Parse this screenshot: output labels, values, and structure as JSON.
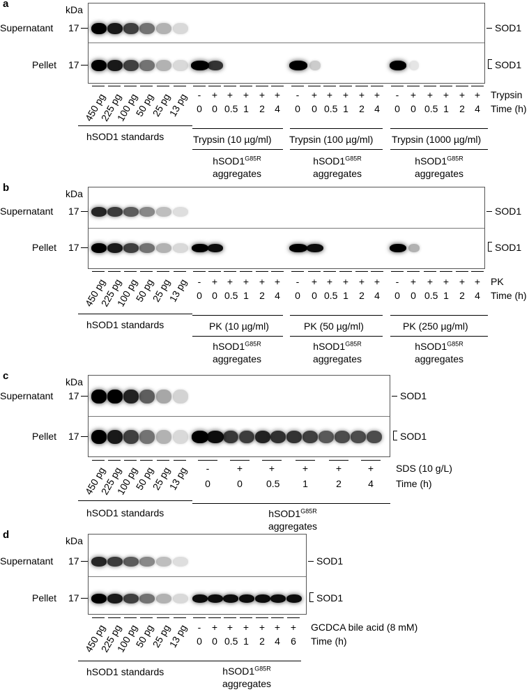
{
  "labels": {
    "kda": "kDa",
    "supernatant": "Supernatant",
    "pellet": "Pellet",
    "mw17": "17",
    "sod1": "SOD1",
    "std_group": "hSOD1 standards",
    "agg_prefix": "hSOD1",
    "agg_sup": "G85R",
    "agg_suffix": "aggregates",
    "time_h": "Time (h)"
  },
  "standards": [
    "450 pg",
    "225 pg",
    "100 pg",
    "50 pg",
    "25 pg",
    "13 pg"
  ],
  "panel_a": {
    "letter": "a",
    "treatment": "Trypsin",
    "signs": [
      "-",
      "+",
      "+",
      "+",
      "+",
      "+"
    ],
    "times": [
      "0",
      "0",
      "0.5",
      "1",
      "2",
      "4"
    ],
    "groups": [
      "Trypsin (10 µg/ml)",
      "Trypsin (100 µg/ml)",
      "Trypsin (1000 µg/ml)"
    ]
  },
  "panel_b": {
    "letter": "b",
    "treatment": "PK",
    "signs": [
      "-",
      "+",
      "+",
      "+",
      "+",
      "+"
    ],
    "times": [
      "0",
      "0",
      "0.5",
      "1",
      "2",
      "4"
    ],
    "groups": [
      "PK (10 µg/ml)",
      "PK (50 µg/ml)",
      "PK (250 µg/ml)"
    ]
  },
  "panel_c": {
    "letter": "c",
    "treatment": "SDS (10 g/L)",
    "signs": [
      "-",
      "+",
      "+",
      "+",
      "+",
      "+"
    ],
    "times": [
      "0",
      "0",
      "0.5",
      "1",
      "2",
      "4"
    ]
  },
  "panel_d": {
    "letter": "d",
    "treatment": "GCDCA bile acid (8 mM)",
    "signs": [
      "-",
      "+",
      "+",
      "+",
      "+",
      "+",
      "+"
    ],
    "times": [
      "0",
      "0",
      "0.5",
      "1",
      "2",
      "4",
      "6"
    ]
  }
}
